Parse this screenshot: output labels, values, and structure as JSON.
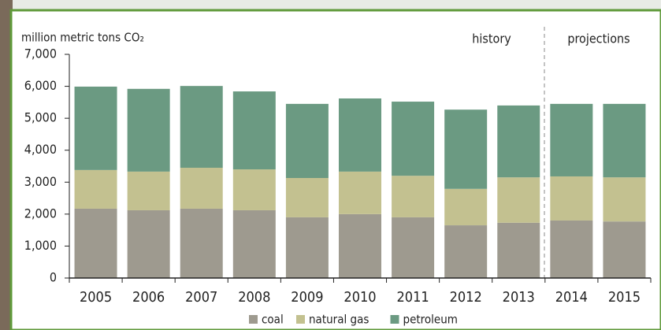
{
  "chart_data": {
    "type": "stacked-bar",
    "y_label": "million metric tons CO₂",
    "annotations": [
      "history",
      "projections"
    ],
    "categories": [
      "2005",
      "2006",
      "2007",
      "2008",
      "2009",
      "2010",
      "2011",
      "2012",
      "2013",
      "2014",
      "2015"
    ],
    "series": [
      {
        "name": "coal",
        "color": "#9e9a8f",
        "values": [
          2170,
          2120,
          2170,
          2120,
          1900,
          2000,
          1900,
          1650,
          1730,
          1800,
          1770
        ]
      },
      {
        "name": "natural gas",
        "color": "#c3c190",
        "values": [
          1210,
          1210,
          1280,
          1280,
          1230,
          1330,
          1300,
          1140,
          1420,
          1380,
          1380
        ]
      },
      {
        "name": "petroleum",
        "color": "#6b9a82",
        "values": [
          2610,
          2590,
          2560,
          2440,
          2320,
          2290,
          2320,
          2480,
          2250,
          2270,
          2300
        ]
      }
    ],
    "ylim": [
      0,
      7000
    ],
    "yticks": [
      0,
      {
        "value": 1000,
        "label": "1,000"
      },
      {
        "value": 2000,
        "label": "2,000"
      },
      {
        "value": 3000,
        "label": "3,000"
      },
      {
        "value": 4000,
        "label": "4,000"
      },
      {
        "value": 5000,
        "label": "5,000"
      },
      {
        "value": 6000,
        "label": "6,000"
      },
      {
        "value": 7000,
        "label": "7,000"
      }
    ],
    "grid": false
  }
}
